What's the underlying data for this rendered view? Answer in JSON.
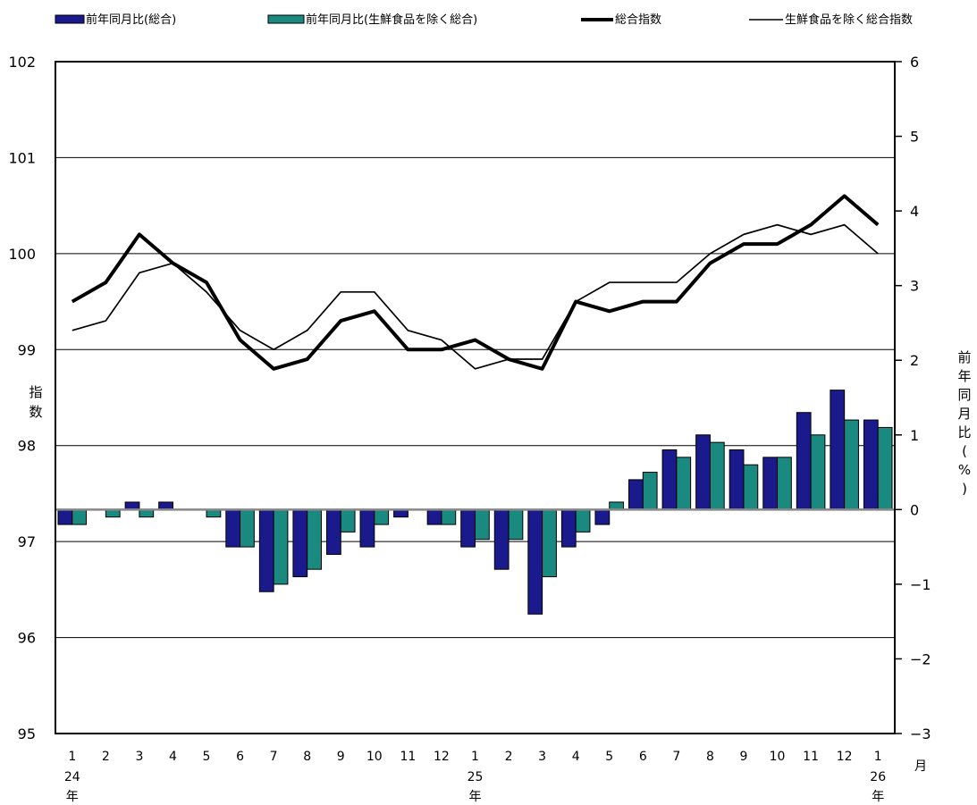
{
  "legend": {
    "bar1": "前年同月比(総合)",
    "bar2": "前年同月比(生鮮食品を除く総合)",
    "line1": "総合指数",
    "line2": "生鮮食品を除く総合指数"
  },
  "axes": {
    "left_title_chars": [
      "指",
      "数"
    ],
    "right_title_chars": [
      "前",
      "年",
      "同",
      "月",
      "比",
      "(",
      "%",
      ")"
    ],
    "x_unit": "月"
  },
  "colors": {
    "bar1": "#1a1a8c",
    "bar2": "#1a8a80",
    "bar_stroke": "#000000",
    "line": "#000000",
    "zero_line": "#888888"
  },
  "chart_data": {
    "type": "bar+line",
    "categories": [
      "1",
      "2",
      "3",
      "4",
      "5",
      "6",
      "7",
      "8",
      "9",
      "10",
      "11",
      "12",
      "1",
      "2",
      "3",
      "4",
      "5",
      "6",
      "7",
      "8",
      "9",
      "10",
      "11",
      "12",
      "1"
    ],
    "year_labels": [
      {
        "index": 0,
        "year": "24",
        "suffix": "年"
      },
      {
        "index": 12,
        "year": "25",
        "suffix": "年"
      },
      {
        "index": 24,
        "year": "26",
        "suffix": "年"
      }
    ],
    "left_axis": {
      "min": 95,
      "max": 102,
      "ticks": [
        "95",
        "96",
        "97",
        "98",
        "99",
        "100",
        "101",
        "102"
      ]
    },
    "right_axis": {
      "min": -3,
      "max": 6,
      "ticks": [
        "-3",
        "-2",
        "-1",
        "0",
        "1",
        "2",
        "3",
        "4",
        "5",
        "6"
      ]
    },
    "grid": true,
    "legend_position": "top",
    "bar_series": [
      {
        "name": "前年同月比(総合)",
        "axis": "right",
        "values": [
          -0.2,
          0.0,
          0.1,
          0.1,
          0.0,
          -0.5,
          -1.1,
          -0.9,
          -0.6,
          -0.5,
          -0.1,
          -0.2,
          -0.5,
          -0.8,
          -1.4,
          -0.5,
          -0.2,
          0.4,
          0.8,
          1.0,
          0.8,
          0.7,
          1.3,
          1.6,
          1.2
        ]
      },
      {
        "name": "前年同月比(生鮮食品を除く総合)",
        "axis": "right",
        "values": [
          -0.2,
          -0.1,
          -0.1,
          0.0,
          -0.1,
          -0.5,
          -1.0,
          -0.8,
          -0.3,
          -0.2,
          0.0,
          -0.2,
          -0.4,
          -0.4,
          -0.9,
          -0.3,
          0.1,
          0.5,
          0.7,
          0.9,
          0.6,
          0.7,
          1.0,
          1.2,
          1.1
        ]
      }
    ],
    "line_series": [
      {
        "name": "総合指数",
        "axis": "left",
        "width": "thick",
        "values": [
          99.5,
          99.7,
          100.2,
          99.9,
          99.7,
          99.1,
          98.8,
          98.9,
          99.3,
          99.4,
          99.0,
          99.0,
          99.1,
          98.9,
          98.8,
          99.5,
          99.4,
          99.5,
          99.5,
          99.9,
          100.1,
          100.1,
          100.3,
          100.6,
          100.3
        ]
      },
      {
        "name": "生鮮食品を除く総合指数",
        "axis": "left",
        "width": "thin",
        "values": [
          99.2,
          99.3,
          99.8,
          99.9,
          99.6,
          99.2,
          99.0,
          99.2,
          99.6,
          99.6,
          99.2,
          99.1,
          98.8,
          98.9,
          98.9,
          99.5,
          99.7,
          99.7,
          99.7,
          100.0,
          100.2,
          100.3,
          100.2,
          100.3,
          100.0
        ]
      }
    ]
  }
}
